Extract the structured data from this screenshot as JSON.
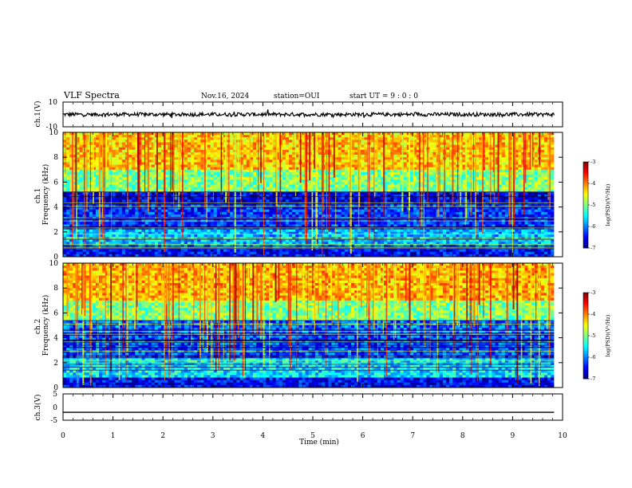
{
  "header": {
    "title": "VLF Spectra",
    "date": "Nov.16, 2024",
    "station": "station=OUI",
    "start_ut": "start UT =  9 : 0 : 0"
  },
  "colors": {
    "waveform": "#000000",
    "colormap": [
      "#00007f",
      "#0000ff",
      "#007fff",
      "#00ffff",
      "#7fff7f",
      "#ffff00",
      "#ff7f00",
      "#ff0000",
      "#7f0000"
    ]
  },
  "chart_data": [
    {
      "type": "line",
      "panel": "waveform-ch1",
      "ylabel": "ch.1(V)",
      "ylim": [
        -10,
        10
      ],
      "yticks": [
        "10",
        "-10"
      ],
      "x": [
        0,
        9.83
      ],
      "y_mean": 0,
      "amplitude_approx": 1.5
    },
    {
      "type": "heatmap",
      "panel": "spectrogram-ch1",
      "ylabel": "ch.1\nFrequency (kHz)",
      "ylim": [
        0,
        10
      ],
      "yticks": [
        "0",
        "2",
        "4",
        "6",
        "8",
        "10"
      ],
      "colorbar": {
        "label": "log(PSD)(V²/Hz)",
        "range": [
          -7,
          -3
        ],
        "ticks": [
          "-3",
          "-4",
          "-5",
          "-6",
          "-7"
        ]
      },
      "bands_khz": [
        [
          0,
          0.8,
          -6.5
        ],
        [
          0.8,
          2.2,
          -5.8
        ],
        [
          2.2,
          4.2,
          -6.3
        ],
        [
          4.2,
          5.2,
          -6.6
        ],
        [
          5.2,
          7.0,
          -5.0
        ],
        [
          7.0,
          10.0,
          -4.3
        ]
      ]
    },
    {
      "type": "heatmap",
      "panel": "spectrogram-ch2",
      "ylabel": "ch.2\nFrequency (kHz)",
      "ylim": [
        0,
        10
      ],
      "yticks": [
        "0",
        "2",
        "4",
        "6",
        "8",
        "10"
      ],
      "colorbar": {
        "label": "log(PSD)(V²/Hz)",
        "range": [
          -7,
          -3
        ],
        "ticks": [
          "-3",
          "-4",
          "-5",
          "-6",
          "-7"
        ]
      },
      "bands_khz": [
        [
          0,
          0.8,
          -6.5
        ],
        [
          0.8,
          2.4,
          -5.6
        ],
        [
          2.4,
          4.5,
          -6.2
        ],
        [
          4.5,
          5.5,
          -6.1
        ],
        [
          5.5,
          7.0,
          -5.0
        ],
        [
          7.0,
          10.0,
          -4.2
        ]
      ]
    },
    {
      "type": "line",
      "panel": "waveform-ch3",
      "ylabel": "ch.3(V)",
      "ylim": [
        -5,
        5
      ],
      "yticks": [
        "5",
        "0",
        "-5"
      ],
      "x": [
        0,
        9.83
      ],
      "y": [
        -2,
        -2
      ]
    }
  ],
  "xaxis": {
    "label": "Time (min)",
    "range": [
      0,
      10
    ],
    "ticks": [
      "0",
      "1",
      "2",
      "3",
      "4",
      "5",
      "6",
      "7",
      "8",
      "9",
      "10"
    ]
  }
}
